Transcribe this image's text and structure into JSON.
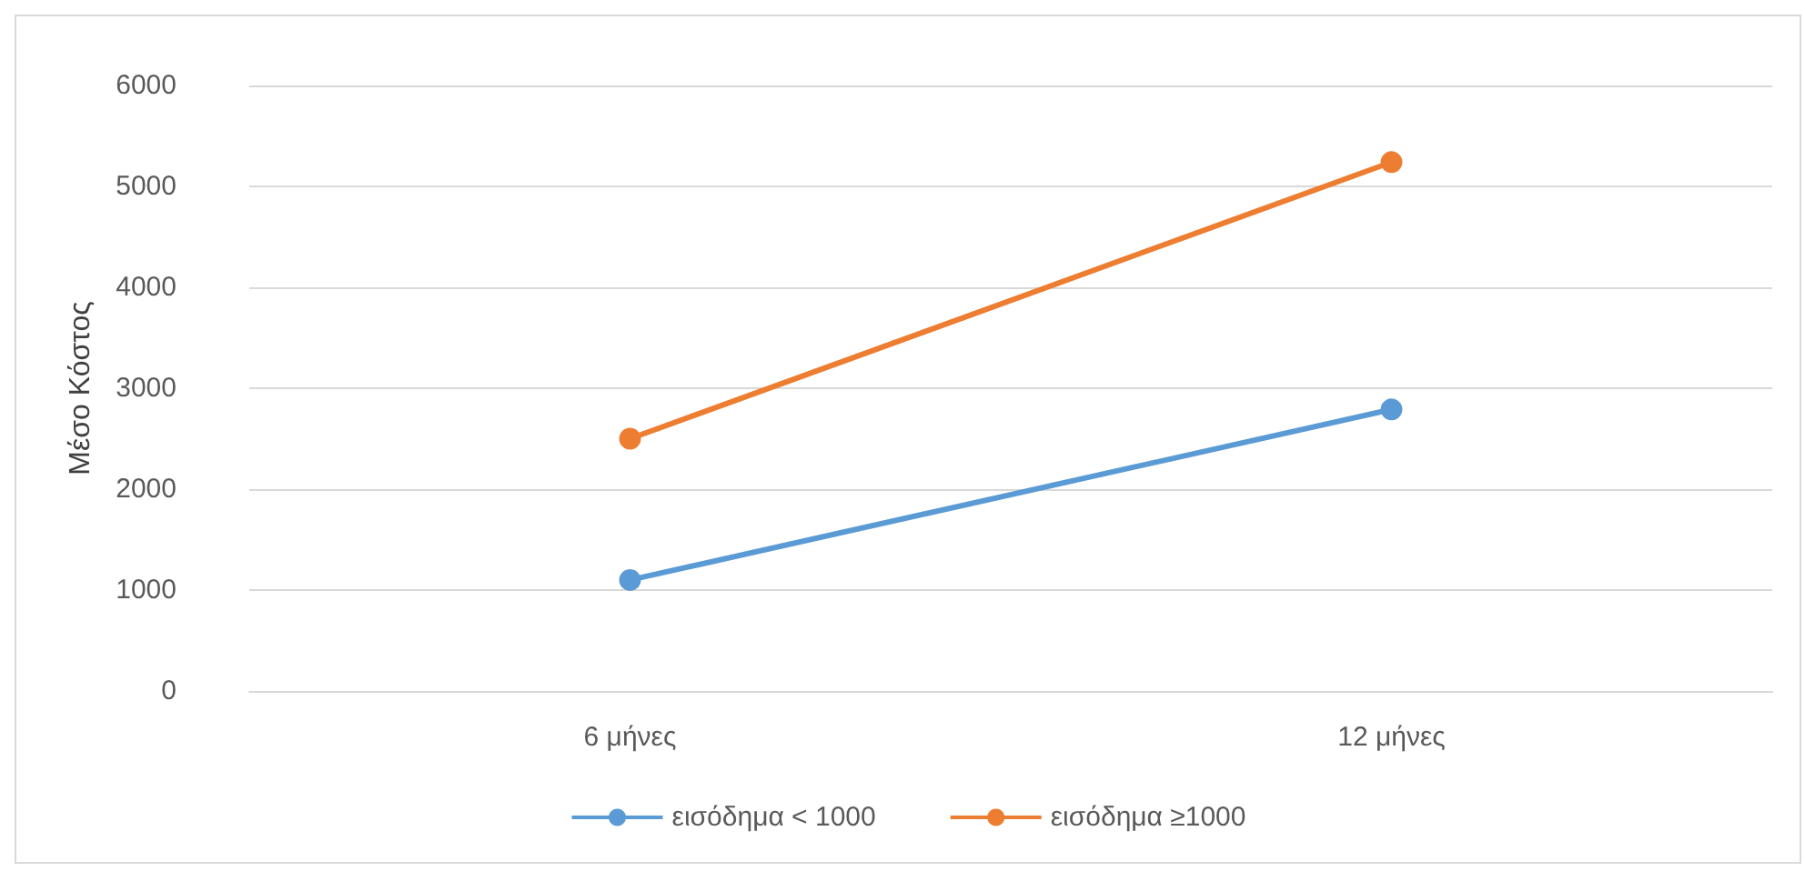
{
  "chart_data": {
    "type": "line",
    "ylabel": "Μέσο Κόστος",
    "categories": [
      "6 μήνες",
      "12 μήνες"
    ],
    "series": [
      {
        "name": "εισόδημα < 1000",
        "color": "#5b9bd5",
        "values": [
          1100,
          2790
        ]
      },
      {
        "name": "εισόδημα ≥1000",
        "color": "#ed7d31",
        "values": [
          2500,
          5240
        ]
      }
    ],
    "ylim": [
      0,
      6000
    ],
    "yticks": [
      0,
      1000,
      2000,
      3000,
      4000,
      5000,
      6000
    ],
    "grid": "y",
    "legend": "bottom",
    "marker": "circle",
    "line_style": "solid"
  }
}
